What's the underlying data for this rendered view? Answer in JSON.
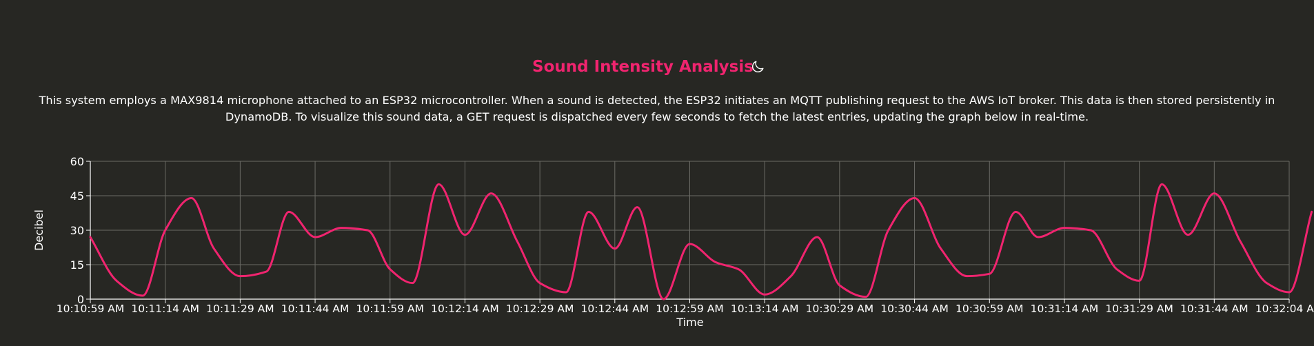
{
  "header": {
    "title": "Sound Intensity Analysis",
    "theme_icon": "moon-icon"
  },
  "description": "This system employs a MAX9814 microphone attached to an ESP32 microcontroller. When a sound is detected, the ESP32 initiates an MQTT publishing request to the AWS IoT broker. This data is then stored persistently in DynamoDB. To visualize this sound data, a GET request is dispatched every few seconds to fetch the latest entries, updating the graph below in real-time.",
  "colors": {
    "background": "#272723",
    "accent": "#f0246f",
    "grid": "#6b6b66",
    "text": "#ffffff"
  },
  "chart_data": {
    "type": "line",
    "xlabel": "Time",
    "ylabel": "Decibel",
    "ylim": [
      0,
      60
    ],
    "yticks": [
      0,
      15,
      30,
      45,
      60
    ],
    "grid": true,
    "curve": "smooth",
    "categories": [
      "10:10:59 AM",
      "10:11:14 AM",
      "10:11:29 AM",
      "10:11:44 AM",
      "10:11:59 AM",
      "10:12:14 AM",
      "10:12:29 AM",
      "10:12:44 AM",
      "10:12:59 AM",
      "10:13:14 AM",
      "10:30:29 AM",
      "10:30:44 AM",
      "10:30:59 AM",
      "10:31:14 AM",
      "10:31:29 AM",
      "10:31:44 AM",
      "10:32:04 AM"
    ],
    "series": [
      {
        "color": "#f0246f",
        "values": [
          {
            "x": 0.0,
            "y": 27
          },
          {
            "x": 0.35,
            "y": 8
          },
          {
            "x": 0.7,
            "y": 1.5
          },
          {
            "x": 1.0,
            "y": 30
          },
          {
            "x": 1.35,
            "y": 44
          },
          {
            "x": 1.65,
            "y": 22
          },
          {
            "x": 2.0,
            "y": 10
          },
          {
            "x": 2.35,
            "y": 12
          },
          {
            "x": 2.65,
            "y": 38
          },
          {
            "x": 3.0,
            "y": 27
          },
          {
            "x": 3.35,
            "y": 31
          },
          {
            "x": 3.7,
            "y": 30
          },
          {
            "x": 4.0,
            "y": 13
          },
          {
            "x": 4.3,
            "y": 7
          },
          {
            "x": 4.65,
            "y": 50
          },
          {
            "x": 5.0,
            "y": 28
          },
          {
            "x": 5.35,
            "y": 46
          },
          {
            "x": 5.7,
            "y": 25
          },
          {
            "x": 6.0,
            "y": 7
          },
          {
            "x": 6.35,
            "y": 3
          },
          {
            "x": 6.65,
            "y": 38
          },
          {
            "x": 7.0,
            "y": 22
          },
          {
            "x": 7.3,
            "y": 40
          },
          {
            "x": 7.65,
            "y": 0
          },
          {
            "x": 8.0,
            "y": 24
          },
          {
            "x": 8.35,
            "y": 16
          },
          {
            "x": 8.65,
            "y": 13
          },
          {
            "x": 9.0,
            "y": 2
          },
          {
            "x": 9.35,
            "y": 10
          },
          {
            "x": 9.7,
            "y": 27
          },
          {
            "x": 10.0,
            "y": 6
          },
          {
            "x": 10.35,
            "y": 1
          },
          {
            "x": 10.65,
            "y": 30
          },
          {
            "x": 11.0,
            "y": 44
          },
          {
            "x": 11.35,
            "y": 22
          },
          {
            "x": 11.7,
            "y": 10
          },
          {
            "x": 12.0,
            "y": 11
          },
          {
            "x": 12.35,
            "y": 38
          },
          {
            "x": 12.65,
            "y": 27
          },
          {
            "x": 13.0,
            "y": 31
          },
          {
            "x": 13.35,
            "y": 30
          },
          {
            "x": 13.7,
            "y": 13
          },
          {
            "x": 14.0,
            "y": 8
          },
          {
            "x": 14.3,
            "y": 50
          },
          {
            "x": 14.65,
            "y": 28
          },
          {
            "x": 15.0,
            "y": 46
          },
          {
            "x": 15.35,
            "y": 25
          },
          {
            "x": 15.7,
            "y": 7
          },
          {
            "x": 16.0,
            "y": 3
          },
          {
            "x": 16.3,
            "y": 38
          }
        ]
      }
    ]
  }
}
